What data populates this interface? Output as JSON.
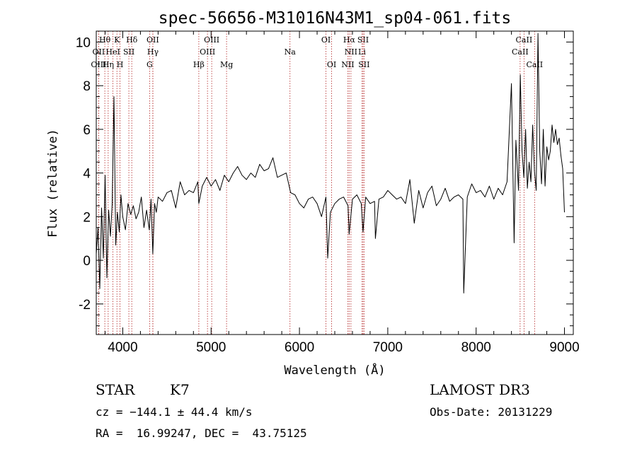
{
  "chart_data": {
    "type": "line",
    "title": "spec-56656-M31016N43M1_sp04-061.fits",
    "xlabel": "Wavelength (Å)",
    "ylabel": "Flux (relative)",
    "xlim": [
      3700,
      9100
    ],
    "ylim": [
      -3.4,
      10.5
    ],
    "x_ticks": [
      4000,
      5000,
      6000,
      7000,
      8000,
      9000
    ],
    "y_ticks": [
      -2,
      0,
      2,
      4,
      6,
      8,
      10
    ],
    "grid": false,
    "series": [
      {
        "color": "#000000",
        "x": [
          3700,
          3720,
          3740,
          3760,
          3780,
          3800,
          3820,
          3840,
          3860,
          3880,
          3900,
          3920,
          3940,
          3960,
          3980,
          4000,
          4030,
          4060,
          4090,
          4120,
          4150,
          4180,
          4210,
          4240,
          4270,
          4300,
          4320,
          4340,
          4360,
          4380,
          4400,
          4450,
          4500,
          4550,
          4600,
          4650,
          4700,
          4750,
          4800,
          4850,
          4861,
          4900,
          4950,
          5000,
          5050,
          5100,
          5150,
          5200,
          5250,
          5300,
          5350,
          5400,
          5450,
          5500,
          5550,
          5600,
          5650,
          5700,
          5750,
          5800,
          5850,
          5900,
          5950,
          6000,
          6050,
          6100,
          6150,
          6200,
          6250,
          6300,
          6320,
          6350,
          6400,
          6450,
          6500,
          6550,
          6563,
          6600,
          6650,
          6700,
          6720,
          6750,
          6800,
          6850,
          6860,
          6900,
          6950,
          7000,
          7050,
          7100,
          7150,
          7200,
          7250,
          7300,
          7350,
          7400,
          7450,
          7500,
          7550,
          7600,
          7650,
          7700,
          7750,
          7800,
          7850,
          7860,
          7900,
          7950,
          8000,
          8050,
          8100,
          8150,
          8200,
          8250,
          8300,
          8350,
          8400,
          8430,
          8450,
          8480,
          8500,
          8520,
          8540,
          8560,
          8580,
          8600,
          8620,
          8640,
          8660,
          8680,
          8700,
          8720,
          8740,
          8760,
          8780,
          8800,
          8820,
          8840,
          8860,
          8880,
          8900,
          8920,
          8940,
          8960,
          8980,
          9000
        ],
        "y": [
          0.3,
          1.5,
          -1.3,
          2.4,
          0.1,
          3.9,
          -0.8,
          2.3,
          1.1,
          2.6,
          7.5,
          0.7,
          2.2,
          1.3,
          3.0,
          2.0,
          1.4,
          2.6,
          2.1,
          2.5,
          1.9,
          2.2,
          2.9,
          1.5,
          2.3,
          1.4,
          2.8,
          0.3,
          2.6,
          2.2,
          2.9,
          2.7,
          3.1,
          3.2,
          2.4,
          3.6,
          3.0,
          3.2,
          3.1,
          3.6,
          2.6,
          3.4,
          3.8,
          3.4,
          3.7,
          3.2,
          3.9,
          3.6,
          4.0,
          4.3,
          3.9,
          3.7,
          4.0,
          3.8,
          4.4,
          4.1,
          4.2,
          4.7,
          3.8,
          3.9,
          4.0,
          3.1,
          3.0,
          2.6,
          2.4,
          2.8,
          2.9,
          2.6,
          2.0,
          2.9,
          0.1,
          2.2,
          2.6,
          2.8,
          2.9,
          2.5,
          1.2,
          2.8,
          3.0,
          2.6,
          1.3,
          2.9,
          2.6,
          2.7,
          1.0,
          2.8,
          2.9,
          3.2,
          3.0,
          2.8,
          2.9,
          2.6,
          3.7,
          1.7,
          3.2,
          2.4,
          3.1,
          3.4,
          2.5,
          2.8,
          3.3,
          2.7,
          2.9,
          3.0,
          2.8,
          -1.5,
          2.9,
          3.5,
          3.1,
          3.2,
          2.9,
          3.4,
          2.8,
          3.3,
          3.0,
          3.6,
          8.1,
          0.8,
          5.5,
          3.2,
          8.5,
          5.0,
          3.8,
          6.0,
          3.3,
          4.5,
          3.6,
          6.2,
          4.1,
          3.2,
          10.4,
          5.0,
          3.5,
          6.0,
          3.4,
          5.2,
          4.6,
          5.0,
          6.2,
          5.4,
          6.0,
          5.3,
          5.6,
          4.8,
          4.2,
          2.2
        ]
      }
    ],
    "lines": [
      {
        "label": "Hθ",
        "wave": 3797,
        "row": 0
      },
      {
        "label": "K",
        "wave": 3934,
        "row": 0
      },
      {
        "label": "Hδ",
        "wave": 4102,
        "row": 0
      },
      {
        "label": "OII",
        "wave": 4340,
        "row": 0
      },
      {
        "label": "OIII",
        "wave": 5007,
        "row": 0
      },
      {
        "label": "OI",
        "wave": 6300,
        "row": 0
      },
      {
        "label": "Hα",
        "wave": 6563,
        "row": 0
      },
      {
        "label": "SII",
        "wave": 6720,
        "row": 0
      },
      {
        "label": "CaII",
        "wave": 8542,
        "row": 0
      },
      {
        "label": "OII",
        "wave": 3727,
        "row": 1
      },
      {
        "label": "HeI",
        "wave": 3889,
        "row": 1
      },
      {
        "label": "SII",
        "wave": 4069,
        "row": 1
      },
      {
        "label": "Hγ",
        "wave": 4341,
        "row": 1
      },
      {
        "label": "OIII",
        "wave": 4959,
        "row": 1
      },
      {
        "label": "Na",
        "wave": 5893,
        "row": 1
      },
      {
        "label": "NII",
        "wave": 6583,
        "row": 1
      },
      {
        "label": "Li",
        "wave": 6708,
        "row": 1
      },
      {
        "label": "CaII",
        "wave": 8498,
        "row": 1
      },
      {
        "label": "OIII",
        "wave": 3727,
        "row": 2
      },
      {
        "label": "Hη",
        "wave": 3835,
        "row": 2
      },
      {
        "label": "H",
        "wave": 3969,
        "row": 2
      },
      {
        "label": "G",
        "wave": 4304,
        "row": 2
      },
      {
        "label": "Hβ",
        "wave": 4861,
        "row": 2
      },
      {
        "label": "Mg",
        "wave": 5175,
        "row": 2
      },
      {
        "label": "OI",
        "wave": 6364,
        "row": 2
      },
      {
        "label": "NII",
        "wave": 6548,
        "row": 2
      },
      {
        "label": "SII",
        "wave": 6731,
        "row": 2
      },
      {
        "label": "CaII",
        "wave": 8662,
        "row": 2
      }
    ]
  },
  "info": {
    "class": "STAR",
    "subclass": "K7",
    "survey": "LAMOST DR3",
    "cz": "cz = −144.1 ± 44.4 km/s",
    "obs_date": "Obs-Date: 20131229",
    "coords": "RA =  16.99247, DEC =  43.75125"
  }
}
